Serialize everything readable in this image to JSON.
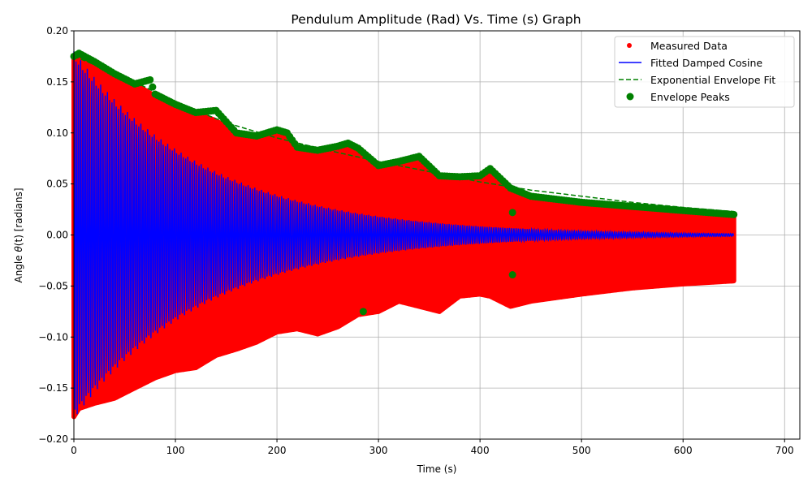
{
  "chart_data": {
    "type": "scatter",
    "title": "Pendulum Amplitude (Rad) Vs. Time (s) Graph",
    "xlabel": "Time (s)",
    "ylabel_prefix": "Angle ",
    "ylabel_symbol": "θ",
    "ylabel_suffix": "(t) [radians]",
    "xlim": [
      0,
      715
    ],
    "ylim": [
      -0.2,
      0.2
    ],
    "xticks": [
      0,
      100,
      200,
      300,
      400,
      500,
      600,
      700
    ],
    "xtick_labels": [
      "0",
      "100",
      "200",
      "300",
      "400",
      "500",
      "600",
      "700"
    ],
    "yticks": [
      -0.2,
      -0.15,
      -0.1,
      -0.05,
      0.0,
      0.05,
      0.1,
      0.15,
      0.2
    ],
    "ytick_labels": [
      "−0.20",
      "−0.15",
      "−0.10",
      "−0.05",
      "0.00",
      "0.05",
      "0.10",
      "0.15",
      "0.20"
    ],
    "grid": true,
    "legend_position": "top-right",
    "colors": {
      "measured": "#ff0000",
      "fitted": "#0000ff",
      "envelope_fit": "#008000",
      "peaks": "#008000"
    },
    "series": [
      {
        "name": "Measured Data",
        "kind": "scatter-band",
        "x": [
          0,
          5,
          20,
          40,
          60,
          80,
          100,
          120,
          140,
          160,
          180,
          200,
          220,
          240,
          260,
          280,
          300,
          320,
          340,
          360,
          380,
          400,
          410,
          430,
          450,
          500,
          550,
          600,
          650
        ],
        "upper": [
          0.175,
          0.178,
          0.17,
          0.158,
          0.148,
          0.136,
          0.128,
          0.12,
          0.112,
          0.1,
          0.097,
          0.103,
          0.086,
          0.083,
          0.087,
          0.085,
          0.068,
          0.072,
          0.077,
          0.058,
          0.057,
          0.058,
          0.065,
          0.046,
          0.038,
          0.032,
          0.028,
          0.024,
          0.02
        ],
        "lower": [
          -0.178,
          -0.17,
          -0.165,
          -0.16,
          -0.15,
          -0.14,
          -0.133,
          -0.13,
          -0.118,
          -0.112,
          -0.105,
          -0.095,
          -0.092,
          -0.097,
          -0.09,
          -0.078,
          -0.075,
          -0.065,
          -0.07,
          -0.075,
          -0.06,
          -0.058,
          -0.06,
          -0.07,
          -0.065,
          -0.058,
          -0.052,
          -0.048,
          -0.045
        ]
      },
      {
        "name": "Fitted Damped Cosine",
        "kind": "line",
        "amplitude": 0.18,
        "decay_per_s": 0.0076,
        "period_s": 2.2,
        "x_end": 650
      },
      {
        "name": "Exponential Envelope Fit",
        "kind": "dashed-line",
        "x": [
          0,
          50,
          100,
          150,
          200,
          250,
          300,
          350,
          400,
          450,
          500,
          550,
          600,
          650
        ],
        "y": [
          0.175,
          0.155,
          0.13,
          0.11,
          0.095,
          0.083,
          0.072,
          0.062,
          0.052,
          0.044,
          0.038,
          0.032,
          0.027,
          0.023
        ]
      },
      {
        "name": "Envelope Peaks",
        "kind": "scatter-peaks",
        "x": [
          0,
          5,
          20,
          40,
          60,
          75,
          80,
          100,
          120,
          140,
          160,
          180,
          200,
          210,
          220,
          240,
          260,
          270,
          280,
          300,
          320,
          340,
          360,
          380,
          400,
          410,
          430,
          450,
          500,
          550,
          600,
          650
        ],
        "y": [
          0.175,
          0.178,
          0.17,
          0.158,
          0.148,
          0.152,
          0.138,
          0.128,
          0.12,
          0.122,
          0.1,
          0.097,
          0.103,
          0.1,
          0.086,
          0.083,
          0.087,
          0.09,
          0.085,
          0.068,
          0.072,
          0.077,
          0.058,
          0.057,
          0.058,
          0.065,
          0.046,
          0.038,
          0.032,
          0.028,
          0.024,
          0.02
        ],
        "outliers_x": [
          285,
          432,
          432
        ],
        "outliers_y": [
          -0.075,
          0.022,
          -0.039
        ]
      }
    ]
  }
}
